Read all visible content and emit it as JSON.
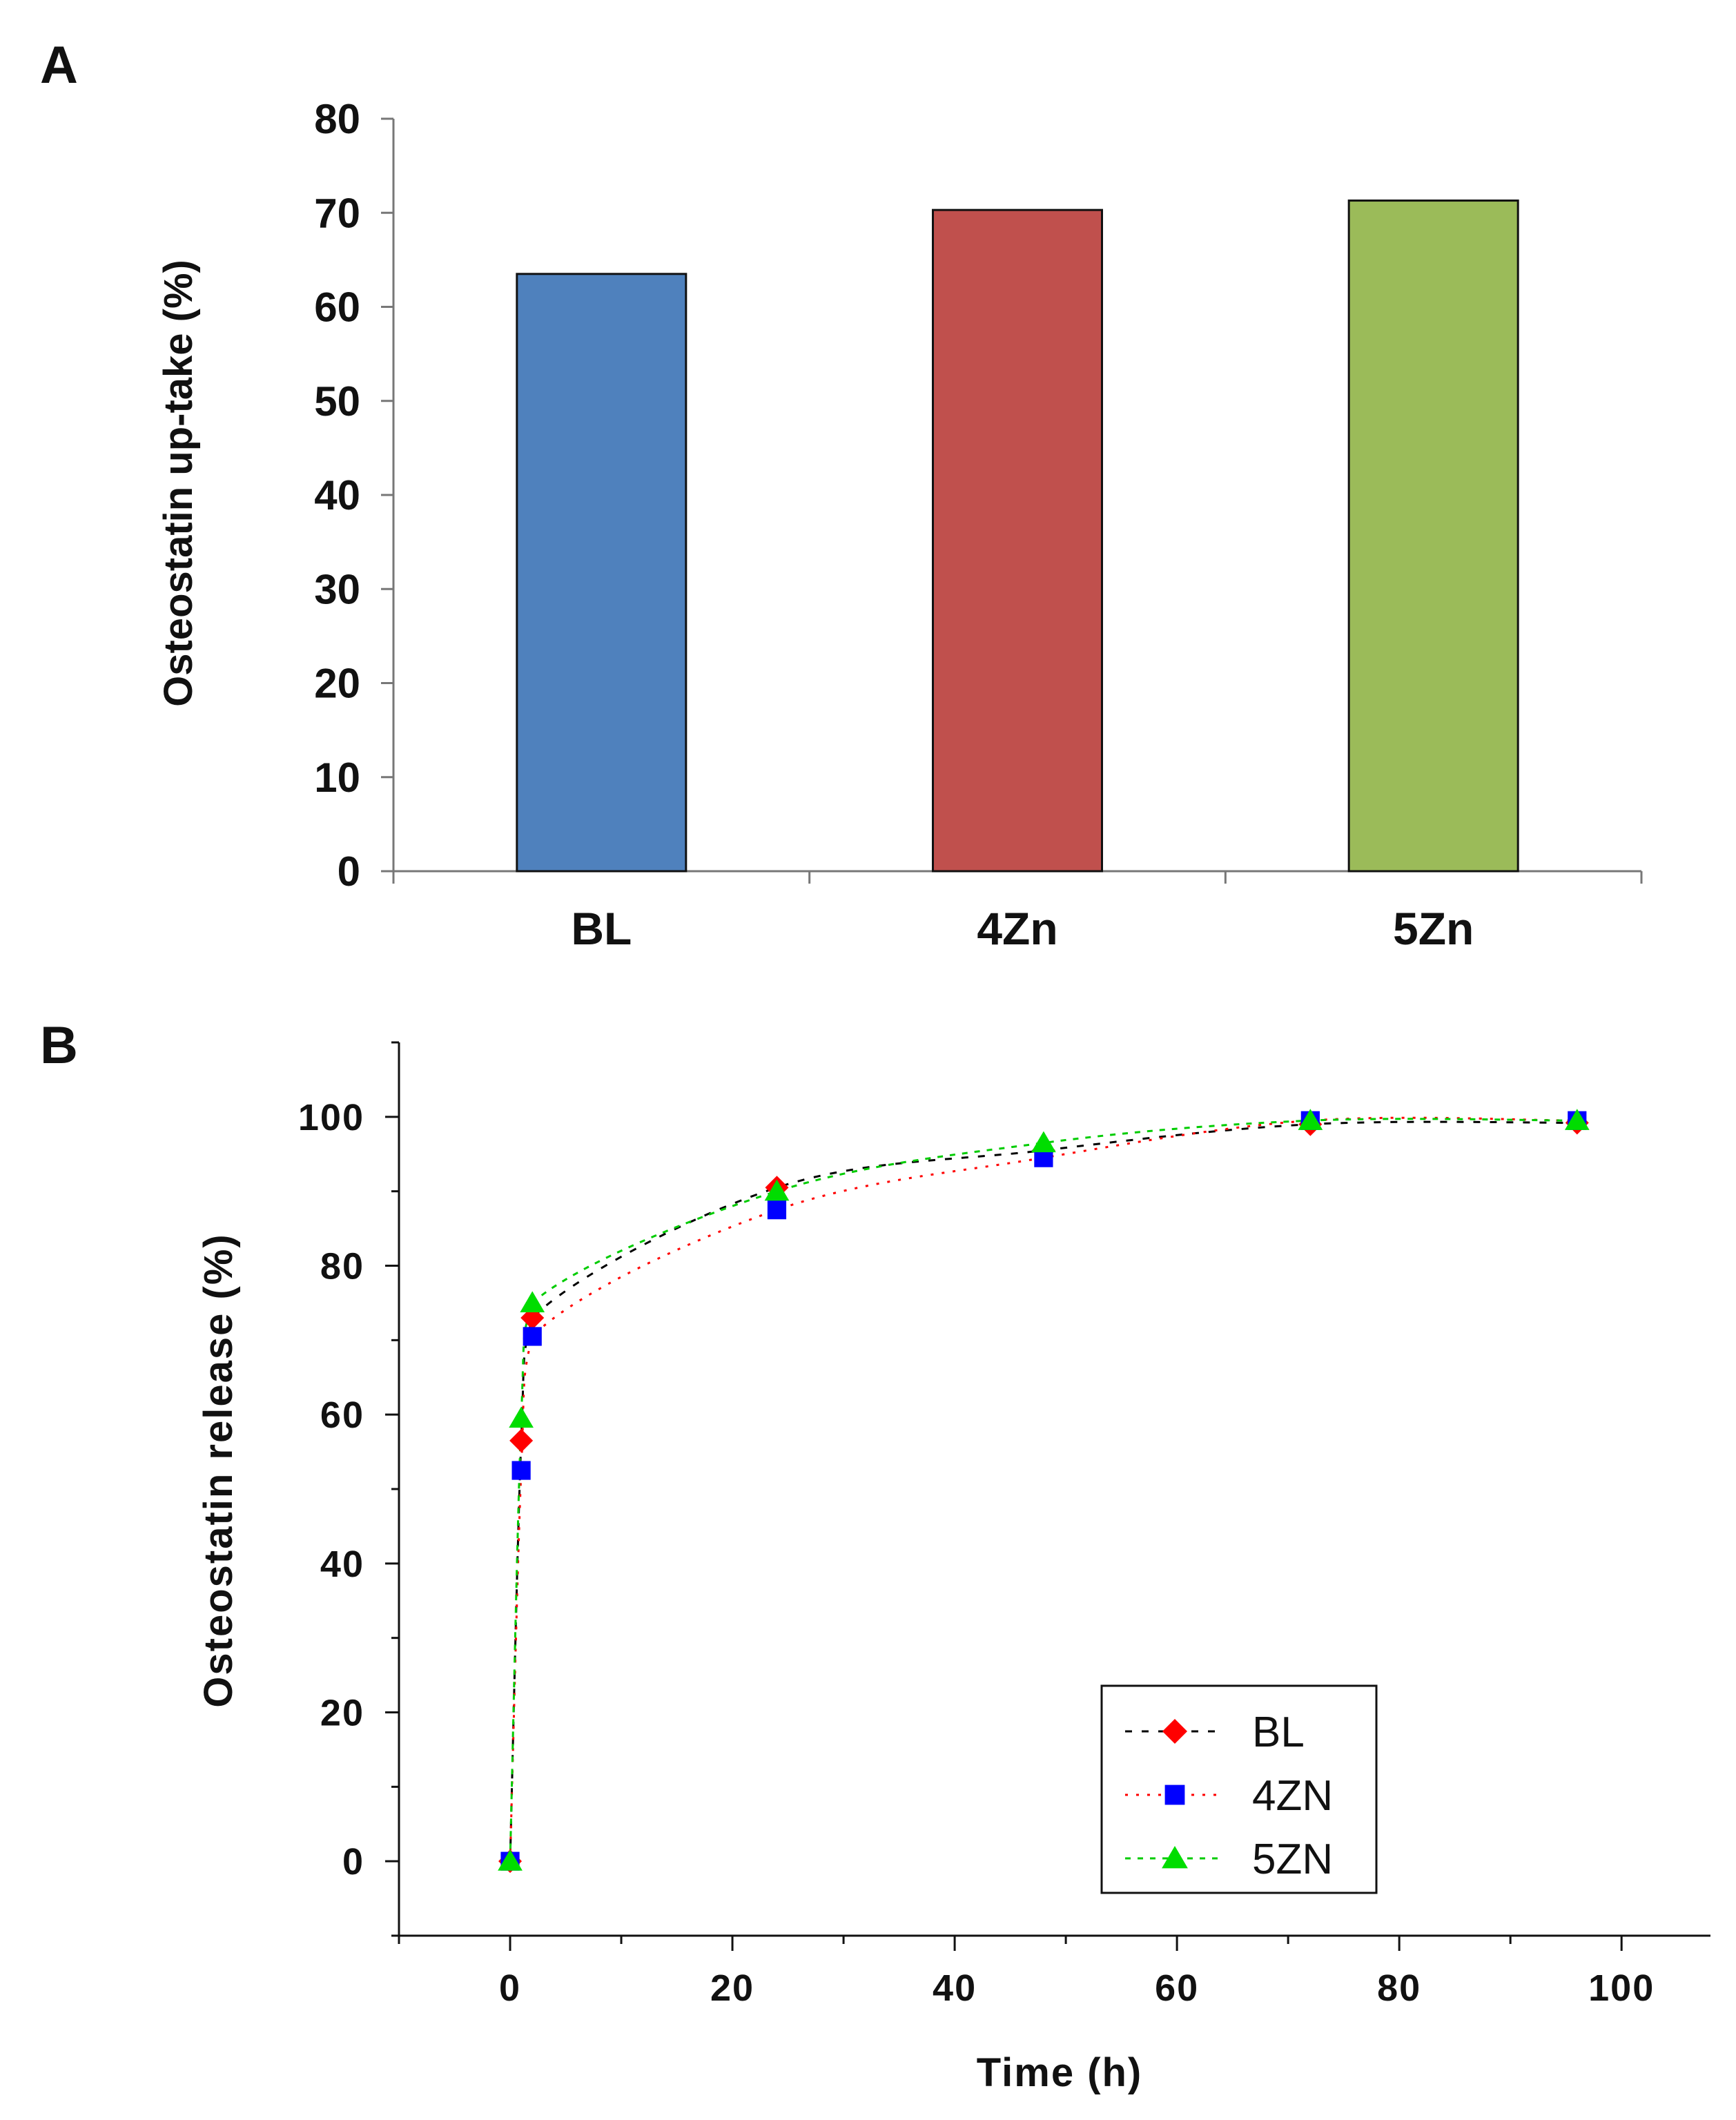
{
  "chart_data": [
    {
      "panel": "A",
      "type": "bar",
      "title": "",
      "xlabel": "",
      "ylabel": "Osteostatin up-take (%)",
      "ylim": [
        0,
        80
      ],
      "yticks": [
        "0",
        "10",
        "20",
        "30",
        "40",
        "50",
        "60",
        "70",
        "80"
      ],
      "categories": [
        "BL",
        "4Zn",
        "5Zn"
      ],
      "values": [
        63.5,
        70.3,
        71.3
      ],
      "colors": [
        "#4f81bd",
        "#c0504d",
        "#9bbb59"
      ],
      "grid": false
    },
    {
      "panel": "B",
      "type": "scatter",
      "title": "",
      "xlabel": "Time (h)",
      "ylabel": "Osteostatin release (%)",
      "xlim": [
        -10,
        108
      ],
      "ylim": [
        -10,
        110
      ],
      "xticks": [
        "0",
        "20",
        "40",
        "60",
        "80",
        "100"
      ],
      "yticks": [
        "0",
        "20",
        "40",
        "60",
        "80",
        "100"
      ],
      "legend_position": "bottom-right",
      "series": [
        {
          "name": "BL",
          "marker": "diamond",
          "color": "#ff0000",
          "line_color": "#000000",
          "x": [
            0,
            1,
            2,
            24,
            48,
            72,
            96
          ],
          "y": [
            0,
            56.5,
            73,
            90.5,
            95.5,
            99,
            99.2
          ]
        },
        {
          "name": "4ZN",
          "marker": "square",
          "color": "#0000ff",
          "line_color": "#ff0000",
          "x": [
            0,
            1,
            2,
            24,
            48,
            72,
            96
          ],
          "y": [
            0,
            52.5,
            70.5,
            87.5,
            94.5,
            99.5,
            99.5
          ]
        },
        {
          "name": "5ZN",
          "marker": "triangle",
          "color": "#00dd00",
          "line_color": "#00cc00",
          "x": [
            0,
            1,
            2,
            24,
            48,
            72,
            96
          ],
          "y": [
            0,
            59.5,
            75,
            90,
            96.5,
            99.5,
            99.5
          ]
        }
      ]
    }
  ]
}
